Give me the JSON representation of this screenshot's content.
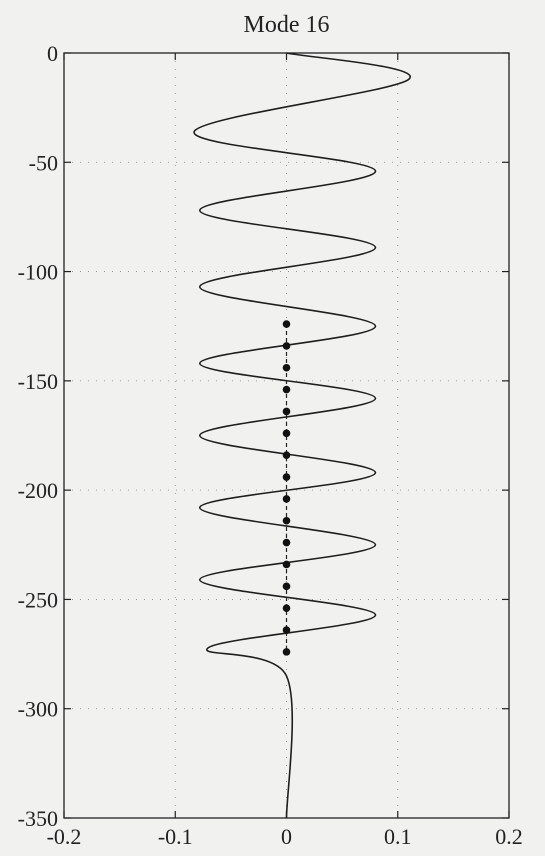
{
  "chart_data": {
    "type": "line",
    "title": "Mode 16",
    "xlabel": "",
    "ylabel": "",
    "xlim": [
      -0.2,
      0.2
    ],
    "ylim": [
      -350,
      0
    ],
    "xticks": [
      -0.2,
      -0.1,
      0,
      0.1,
      0.2
    ],
    "xtick_labels": [
      "-0.2",
      "-0.1",
      "0",
      "0.1",
      "0.2"
    ],
    "yticks": [
      0,
      -50,
      -100,
      -150,
      -200,
      -250,
      -300,
      -350
    ],
    "ytick_labels": [
      "0",
      "-50",
      "-100",
      "-150",
      "-200",
      "-250",
      "-300",
      "-350"
    ],
    "grid": true,
    "series": [
      {
        "style": "solid-line",
        "color": "#1e1e1e",
        "description_points": [
          {
            "x": 0,
            "y": 0
          },
          {
            "x": 0.11,
            "y": -12
          },
          {
            "x": -0.083,
            "y": -36
          },
          {
            "x": 0.08,
            "y": -54
          },
          {
            "x": -0.078,
            "y": -72
          },
          {
            "x": 0.08,
            "y": -89
          },
          {
            "x": -0.078,
            "y": -107
          },
          {
            "x": 0.08,
            "y": -125
          },
          {
            "x": -0.078,
            "y": -142
          },
          {
            "x": 0.08,
            "y": -158
          },
          {
            "x": -0.078,
            "y": -175
          },
          {
            "x": 0.08,
            "y": -192
          },
          {
            "x": -0.078,
            "y": -208
          },
          {
            "x": 0.08,
            "y": -225
          },
          {
            "x": -0.078,
            "y": -241
          },
          {
            "x": 0.08,
            "y": -257
          },
          {
            "x": -0.07,
            "y": -272
          },
          {
            "x": 0,
            "y": -285
          },
          {
            "x": 0,
            "y": -350
          }
        ]
      },
      {
        "style": "markers-dashed",
        "color": "#111111",
        "points": [
          {
            "x": 0,
            "y": -124
          },
          {
            "x": 0,
            "y": -134
          },
          {
            "x": 0,
            "y": -144
          },
          {
            "x": 0,
            "y": -154
          },
          {
            "x": 0,
            "y": -164
          },
          {
            "x": 0,
            "y": -174
          },
          {
            "x": 0,
            "y": -184
          },
          {
            "x": 0,
            "y": -194
          },
          {
            "x": 0,
            "y": -204
          },
          {
            "x": 0,
            "y": -214
          },
          {
            "x": 0,
            "y": -224
          },
          {
            "x": 0,
            "y": -234
          },
          {
            "x": 0,
            "y": -244
          },
          {
            "x": 0,
            "y": -254
          },
          {
            "x": 0,
            "y": -264
          },
          {
            "x": 0,
            "y": -274
          }
        ]
      }
    ]
  }
}
